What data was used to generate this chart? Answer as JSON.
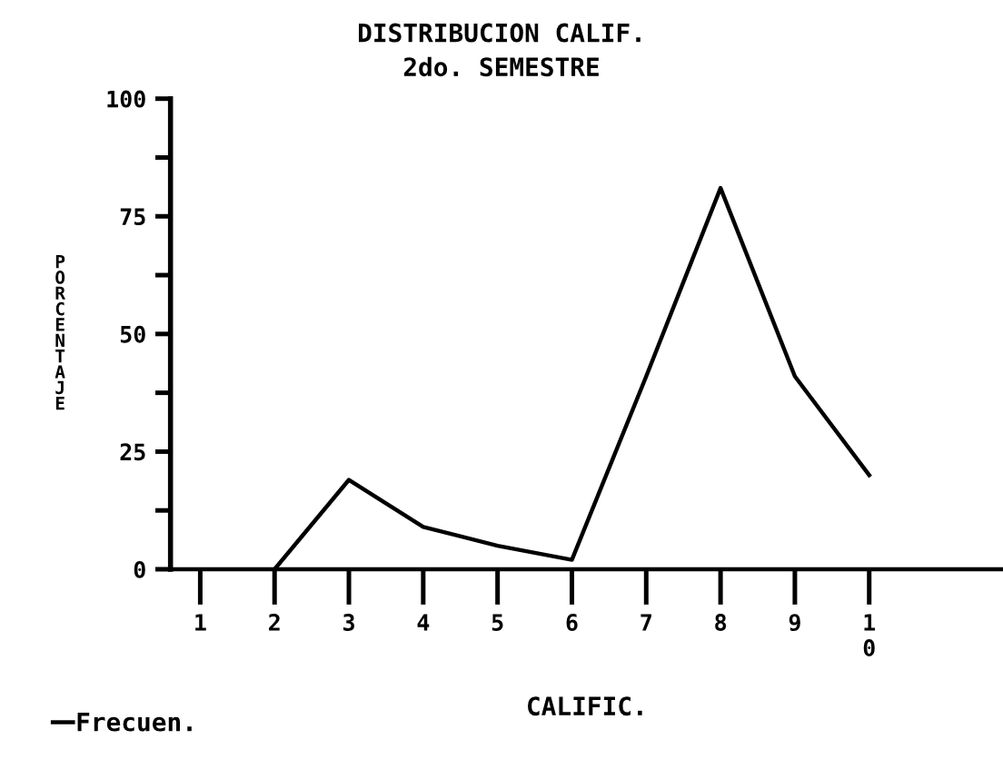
{
  "chart_data": {
    "type": "line",
    "title": "DISTRIBUCION CALIF.",
    "subtitle": "2do. SEMESTRE",
    "xlabel": "CALIFIC.",
    "ylabel": "PORCENTAJE",
    "categories": [
      "1",
      "2",
      "3",
      "4",
      "5",
      "6",
      "7",
      "8",
      "9",
      "1\n0"
    ],
    "series": [
      {
        "name": "Frecuen.",
        "color": "#000000",
        "values": [
          null,
          0,
          19,
          9,
          5,
          2,
          41,
          81,
          41,
          20
        ]
      }
    ],
    "ylim": [
      0,
      100
    ],
    "yticks": [
      0,
      {
        "value": 12.5,
        "label": null
      },
      25,
      {
        "value": 37.5,
        "label": null
      },
      50,
      {
        "value": 62.5,
        "label": null
      },
      75,
      {
        "value": 87.5,
        "label": null
      },
      100
    ],
    "grid": false,
    "legend": "bottom left",
    "marker": "none",
    "line_style": "solid"
  }
}
